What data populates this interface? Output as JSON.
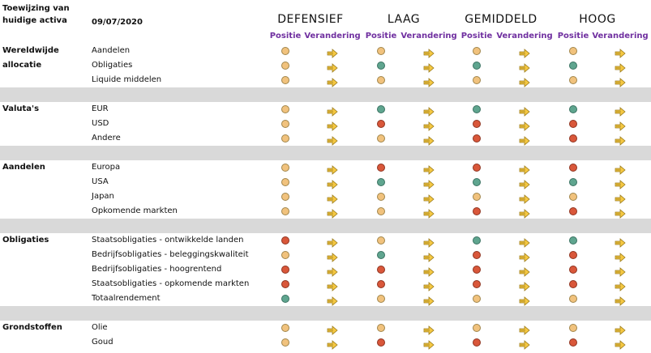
{
  "header": {
    "title_line1": "Toewijzing van",
    "title_line2": "huidige activa",
    "date": "09/07/2020",
    "profiles": [
      "DEFENSIEF",
      "LAAG",
      "GEMIDDELD",
      "HOOG"
    ],
    "sub_position": "Positie",
    "sub_change": "Verandering"
  },
  "colors": {
    "neutral": "#f1c27d",
    "positive": "#5fa58f",
    "negative": "#d9573a",
    "arrow": "#f5c842",
    "subheader": "#7030a0",
    "band": "#d9d9d9"
  },
  "groups": [
    {
      "label": "Wereldwijde allocatie",
      "rows": [
        {
          "label": "Aandelen",
          "positions": [
            "neutral",
            "neutral",
            "neutral",
            "neutral"
          ]
        },
        {
          "label": "Obligaties",
          "positions": [
            "neutral",
            "positive",
            "positive",
            "positive"
          ]
        },
        {
          "label": "Liquide middelen",
          "positions": [
            "neutral",
            "neutral",
            "neutral",
            "neutral"
          ]
        }
      ]
    },
    {
      "label": "Valuta's",
      "rows": [
        {
          "label": "EUR",
          "positions": [
            "neutral",
            "positive",
            "positive",
            "positive"
          ]
        },
        {
          "label": "USD",
          "positions": [
            "neutral",
            "negative",
            "negative",
            "negative"
          ]
        },
        {
          "label": "Andere",
          "positions": [
            "neutral",
            "neutral",
            "negative",
            "negative"
          ]
        }
      ]
    },
    {
      "label": "Aandelen",
      "rows": [
        {
          "label": "Europa",
          "positions": [
            "neutral",
            "negative",
            "negative",
            "negative"
          ]
        },
        {
          "label": "USA",
          "positions": [
            "neutral",
            "positive",
            "positive",
            "positive"
          ]
        },
        {
          "label": "Japan",
          "positions": [
            "neutral",
            "neutral",
            "neutral",
            "neutral"
          ]
        },
        {
          "label": "Opkomende markten",
          "positions": [
            "neutral",
            "neutral",
            "negative",
            "negative"
          ]
        }
      ]
    },
    {
      "label": "Obligaties",
      "rows": [
        {
          "label": "Staatsobligaties - ontwikkelde landen",
          "positions": [
            "negative",
            "neutral",
            "positive",
            "positive"
          ]
        },
        {
          "label": "Bedrijfsobligaties - beleggingskwaliteit",
          "positions": [
            "neutral",
            "positive",
            "negative",
            "negative"
          ]
        },
        {
          "label": "Bedrijfsobligaties - hoogrentend",
          "positions": [
            "negative",
            "negative",
            "negative",
            "negative"
          ]
        },
        {
          "label": "Staatsobligaties - opkomende markten",
          "positions": [
            "negative",
            "negative",
            "negative",
            "negative"
          ]
        },
        {
          "label": "Totaalrendement",
          "positions": [
            "positive",
            "neutral",
            "neutral",
            "neutral"
          ]
        }
      ]
    },
    {
      "label": "Grondstoffen",
      "rows": [
        {
          "label": "Olie",
          "positions": [
            "neutral",
            "neutral",
            "neutral",
            "neutral"
          ]
        },
        {
          "label": "Goud",
          "positions": [
            "neutral",
            "negative",
            "negative",
            "negative"
          ]
        }
      ]
    }
  ],
  "change_icon": "right-arrow-icon"
}
